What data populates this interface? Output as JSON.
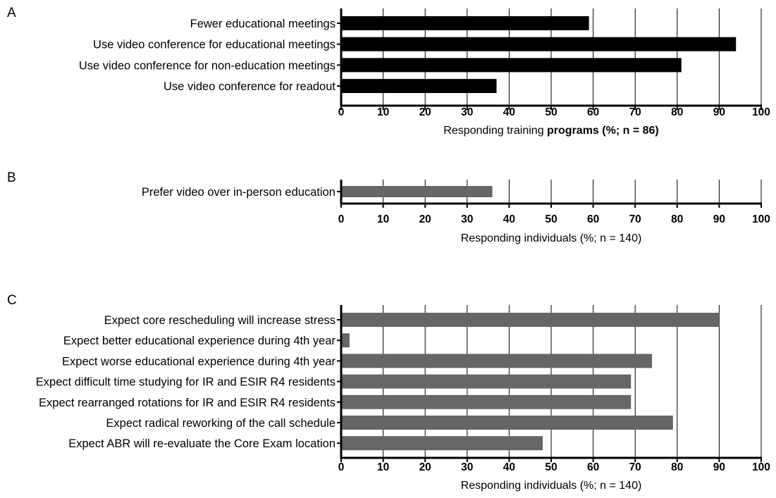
{
  "chart_data": [
    {
      "panel": "A",
      "type": "bar",
      "orientation": "horizontal",
      "categories": [
        "Fewer educational meetings",
        "Use video conference for educational meetings",
        "Use video conference for non-education meetings",
        "Use video conference for readout"
      ],
      "values": [
        59,
        94,
        81,
        37
      ],
      "xlabel": "Responding training programs (%; n = 86)",
      "xlabel_plain": "Responding training ",
      "xlabel_bold": "programs (%; n = 86)",
      "ticks": [
        "0",
        "10",
        "20",
        "30",
        "40",
        "50",
        "60",
        "70",
        "80",
        "90",
        "100"
      ],
      "xlim": [
        0,
        100
      ],
      "grid": "vertical",
      "bar_color": "#000000"
    },
    {
      "panel": "B",
      "type": "bar",
      "orientation": "horizontal",
      "categories": [
        "Prefer video over in-person education"
      ],
      "values": [
        36
      ],
      "xlabel": "Responding individuals (%; n = 140)",
      "xlabel_plain": "Responding individuals (%; n = 140)",
      "xlabel_bold": "",
      "ticks": [
        "0",
        "10",
        "20",
        "30",
        "40",
        "50",
        "60",
        "70",
        "80",
        "90",
        "100"
      ],
      "xlim": [
        0,
        100
      ],
      "grid": "vertical",
      "bar_color": "#666666"
    },
    {
      "panel": "C",
      "type": "bar",
      "orientation": "horizontal",
      "categories": [
        "Expect core rescheduling will increase stress",
        "Expect better educational experience during 4th year",
        "Expect worse educational experience during 4th year",
        "Expect difficult time studying for IR and ESIR R4 residents",
        "Expect rearranged rotations for IR and ESIR R4 residents",
        "Expect radical reworking of the call schedule",
        "Expect ABR will re-evaluate the Core Exam location"
      ],
      "values": [
        90,
        2,
        74,
        69,
        69,
        79,
        48
      ],
      "xlabel": "Responding individuals (%; n = 140)",
      "xlabel_plain": "Responding individuals (%; n = 140)",
      "xlabel_bold": "",
      "ticks": [
        "0",
        "10",
        "20",
        "30",
        "40",
        "50",
        "60",
        "70",
        "80",
        "90",
        "100"
      ],
      "xlim": [
        0,
        100
      ],
      "grid": "vertical",
      "bar_color": "#666666"
    }
  ]
}
